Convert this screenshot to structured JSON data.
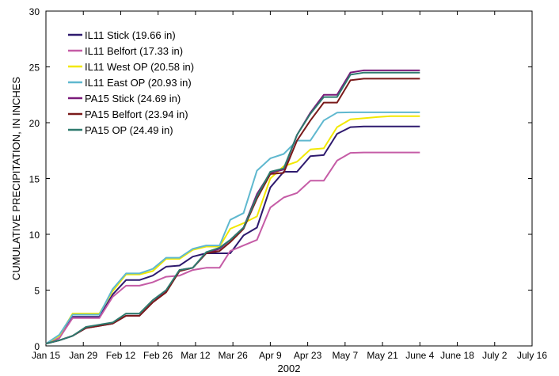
{
  "chart_data": {
    "type": "line",
    "title": "",
    "xlabel": "2002",
    "ylabel": "CUMULATIVE PRECIPITATION, IN INCHES",
    "ylim": [
      0,
      30
    ],
    "yticks": [
      0,
      5,
      10,
      15,
      20,
      25,
      30
    ],
    "xlim": [
      0,
      182
    ],
    "xticks": [
      {
        "day": 0,
        "label": "Jan 15"
      },
      {
        "day": 14,
        "label": "Jan 29"
      },
      {
        "day": 28,
        "label": "Feb 12"
      },
      {
        "day": 42,
        "label": "Feb 26"
      },
      {
        "day": 56,
        "label": "Mar 12"
      },
      {
        "day": 70,
        "label": "Mar 26"
      },
      {
        "day": 84,
        "label": "Apr 9"
      },
      {
        "day": 98,
        "label": "Apr 23"
      },
      {
        "day": 112,
        "label": "May 7"
      },
      {
        "day": 126,
        "label": "May 21"
      },
      {
        "day": 140,
        "label": "June 4"
      },
      {
        "day": 154,
        "label": "June 18"
      },
      {
        "day": 168,
        "label": "July 2"
      },
      {
        "day": 182,
        "label": "July 16"
      }
    ],
    "legend_position": "top-left",
    "grid": false,
    "series": [
      {
        "name": "IL11 Stick (19.66 in)",
        "color": "#2e1a6e",
        "points": [
          [
            0,
            0.2
          ],
          [
            5,
            0.7
          ],
          [
            10,
            2.6
          ],
          [
            15,
            2.6
          ],
          [
            20,
            2.6
          ],
          [
            25,
            4.6
          ],
          [
            30,
            5.9
          ],
          [
            35,
            5.9
          ],
          [
            40,
            6.3
          ],
          [
            45,
            7.1
          ],
          [
            50,
            7.2
          ],
          [
            55,
            8.0
          ],
          [
            60,
            8.3
          ],
          [
            65,
            8.3
          ],
          [
            69,
            8.3
          ],
          [
            74,
            9.9
          ],
          [
            79,
            10.6
          ],
          [
            84,
            14.2
          ],
          [
            89,
            15.6
          ],
          [
            94,
            15.6
          ],
          [
            99,
            17.0
          ],
          [
            104,
            17.1
          ],
          [
            109,
            19.0
          ],
          [
            114,
            19.6
          ],
          [
            119,
            19.66
          ],
          [
            124,
            19.66
          ],
          [
            129,
            19.66
          ],
          [
            134,
            19.66
          ],
          [
            140,
            19.66
          ]
        ]
      },
      {
        "name": "IL11 Belfort (17.33 in)",
        "color": "#c55ca6",
        "points": [
          [
            0,
            0.2
          ],
          [
            5,
            0.7
          ],
          [
            10,
            2.5
          ],
          [
            15,
            2.5
          ],
          [
            20,
            2.5
          ],
          [
            25,
            4.4
          ],
          [
            30,
            5.4
          ],
          [
            35,
            5.4
          ],
          [
            40,
            5.7
          ],
          [
            45,
            6.2
          ],
          [
            50,
            6.3
          ],
          [
            55,
            6.8
          ],
          [
            60,
            7.0
          ],
          [
            65,
            7.0
          ],
          [
            69,
            8.5
          ],
          [
            74,
            9.0
          ],
          [
            79,
            9.5
          ],
          [
            84,
            12.4
          ],
          [
            89,
            13.3
          ],
          [
            94,
            13.7
          ],
          [
            99,
            14.8
          ],
          [
            104,
            14.8
          ],
          [
            109,
            16.6
          ],
          [
            114,
            17.3
          ],
          [
            119,
            17.33
          ],
          [
            124,
            17.33
          ],
          [
            129,
            17.33
          ],
          [
            134,
            17.33
          ],
          [
            140,
            17.33
          ]
        ]
      },
      {
        "name": "IL11 West OP (20.58 in)",
        "color": "#f2e800",
        "points": [
          [
            0,
            0.2
          ],
          [
            5,
            0.9
          ],
          [
            10,
            2.9
          ],
          [
            15,
            2.9
          ],
          [
            20,
            2.9
          ],
          [
            25,
            4.9
          ],
          [
            30,
            6.4
          ],
          [
            35,
            6.4
          ],
          [
            40,
            6.7
          ],
          [
            45,
            7.8
          ],
          [
            50,
            7.8
          ],
          [
            55,
            8.6
          ],
          [
            60,
            8.9
          ],
          [
            65,
            8.9
          ],
          [
            69,
            10.5
          ],
          [
            74,
            11.0
          ],
          [
            79,
            11.6
          ],
          [
            84,
            15.0
          ],
          [
            89,
            16.1
          ],
          [
            94,
            16.5
          ],
          [
            99,
            17.6
          ],
          [
            104,
            17.7
          ],
          [
            109,
            19.6
          ],
          [
            114,
            20.3
          ],
          [
            119,
            20.4
          ],
          [
            124,
            20.5
          ],
          [
            129,
            20.58
          ],
          [
            134,
            20.58
          ],
          [
            140,
            20.58
          ]
        ]
      },
      {
        "name": "IL11 East OP (20.93 in)",
        "color": "#5fb8cf",
        "points": [
          [
            0,
            0.2
          ],
          [
            5,
            1.0
          ],
          [
            10,
            2.8
          ],
          [
            15,
            2.8
          ],
          [
            20,
            2.8
          ],
          [
            25,
            5.1
          ],
          [
            30,
            6.5
          ],
          [
            35,
            6.5
          ],
          [
            40,
            6.9
          ],
          [
            45,
            7.9
          ],
          [
            50,
            7.9
          ],
          [
            55,
            8.7
          ],
          [
            60,
            9.0
          ],
          [
            65,
            9.0
          ],
          [
            69,
            11.3
          ],
          [
            74,
            11.9
          ],
          [
            79,
            15.7
          ],
          [
            84,
            16.8
          ],
          [
            89,
            17.2
          ],
          [
            94,
            18.4
          ],
          [
            99,
            18.4
          ],
          [
            104,
            20.2
          ],
          [
            109,
            20.9
          ],
          [
            114,
            20.93
          ],
          [
            119,
            20.93
          ],
          [
            124,
            20.93
          ],
          [
            129,
            20.93
          ],
          [
            134,
            20.93
          ],
          [
            140,
            20.93
          ]
        ]
      },
      {
        "name": "PA15 Stick (24.69 in)",
        "color": "#7a1a7a",
        "points": [
          [
            0,
            0.2
          ],
          [
            5,
            0.5
          ],
          [
            10,
            0.9
          ],
          [
            15,
            1.6
          ],
          [
            20,
            1.8
          ],
          [
            25,
            2.0
          ],
          [
            30,
            2.7
          ],
          [
            35,
            2.7
          ],
          [
            40,
            3.9
          ],
          [
            45,
            4.9
          ],
          [
            50,
            6.8
          ],
          [
            55,
            7.0
          ],
          [
            60,
            8.3
          ],
          [
            65,
            8.7
          ],
          [
            69,
            9.5
          ],
          [
            74,
            10.6
          ],
          [
            79,
            13.6
          ],
          [
            84,
            15.5
          ],
          [
            89,
            15.8
          ],
          [
            94,
            18.9
          ],
          [
            99,
            20.9
          ],
          [
            104,
            22.5
          ],
          [
            109,
            22.5
          ],
          [
            114,
            24.5
          ],
          [
            119,
            24.69
          ],
          [
            124,
            24.69
          ],
          [
            129,
            24.69
          ],
          [
            134,
            24.69
          ],
          [
            140,
            24.69
          ]
        ]
      },
      {
        "name": "PA15 Belfort (23.94 in)",
        "color": "#7a1a1a",
        "points": [
          [
            0,
            0.2
          ],
          [
            5,
            0.5
          ],
          [
            10,
            0.9
          ],
          [
            15,
            1.6
          ],
          [
            20,
            1.8
          ],
          [
            25,
            2.0
          ],
          [
            30,
            2.7
          ],
          [
            35,
            2.7
          ],
          [
            40,
            3.9
          ],
          [
            45,
            4.8
          ],
          [
            50,
            6.7
          ],
          [
            55,
            7.0
          ],
          [
            60,
            8.3
          ],
          [
            65,
            8.5
          ],
          [
            69,
            9.3
          ],
          [
            74,
            10.5
          ],
          [
            79,
            13.2
          ],
          [
            84,
            15.4
          ],
          [
            89,
            15.5
          ],
          [
            94,
            18.4
          ],
          [
            99,
            20.2
          ],
          [
            104,
            21.8
          ],
          [
            109,
            21.8
          ],
          [
            114,
            23.8
          ],
          [
            119,
            23.94
          ],
          [
            124,
            23.94
          ],
          [
            129,
            23.94
          ],
          [
            134,
            23.94
          ],
          [
            140,
            23.94
          ]
        ]
      },
      {
        "name": "PA15 OP (24.49 in)",
        "color": "#2e7a6e",
        "points": [
          [
            0,
            0.2
          ],
          [
            5,
            0.5
          ],
          [
            10,
            0.9
          ],
          [
            15,
            1.7
          ],
          [
            20,
            1.9
          ],
          [
            25,
            2.1
          ],
          [
            30,
            2.9
          ],
          [
            35,
            2.9
          ],
          [
            40,
            4.1
          ],
          [
            45,
            5.0
          ],
          [
            50,
            6.8
          ],
          [
            55,
            7.0
          ],
          [
            60,
            8.4
          ],
          [
            65,
            8.8
          ],
          [
            69,
            9.5
          ],
          [
            74,
            10.6
          ],
          [
            79,
            13.4
          ],
          [
            84,
            15.6
          ],
          [
            89,
            15.9
          ],
          [
            94,
            18.9
          ],
          [
            99,
            20.8
          ],
          [
            104,
            22.3
          ],
          [
            109,
            22.3
          ],
          [
            114,
            24.3
          ],
          [
            119,
            24.49
          ],
          [
            124,
            24.49
          ],
          [
            129,
            24.49
          ],
          [
            134,
            24.49
          ],
          [
            140,
            24.49
          ]
        ]
      }
    ]
  }
}
